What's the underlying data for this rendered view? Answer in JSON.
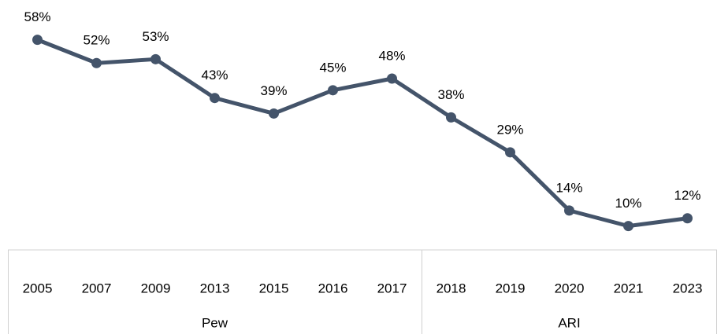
{
  "chart_data": {
    "type": "line",
    "color": "#44546a",
    "groups": [
      {
        "label": "Pew",
        "categories": [
          "2005",
          "2007",
          "2009",
          "2013",
          "2015",
          "2016",
          "2017"
        ],
        "values": [
          58,
          52,
          53,
          43,
          39,
          45,
          48
        ],
        "value_labels": [
          "58%",
          "52%",
          "53%",
          "43%",
          "39%",
          "45%",
          "48%"
        ]
      },
      {
        "label": "ARI",
        "categories": [
          "2018",
          "2019",
          "2020",
          "2021",
          "2023"
        ],
        "values": [
          38,
          29,
          14,
          10,
          12
        ],
        "value_labels": [
          "38%",
          "29%",
          "14%",
          "10%",
          "12%"
        ]
      }
    ]
  }
}
